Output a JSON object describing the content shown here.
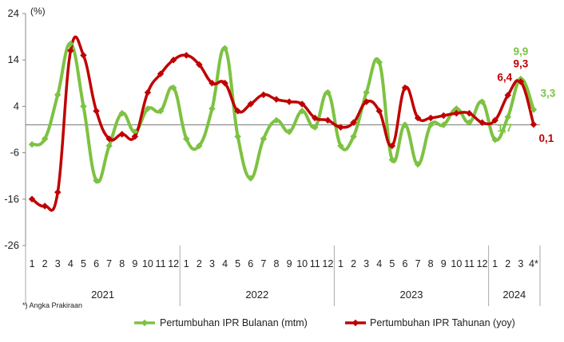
{
  "chart_data": {
    "type": "line",
    "unit_label": "(%)",
    "ylim": [
      -26,
      24
    ],
    "yticks": [
      24,
      14,
      4,
      -6,
      -16,
      -26
    ],
    "months": [
      "1",
      "2",
      "3",
      "4",
      "5",
      "6",
      "7",
      "8",
      "9",
      "10",
      "11",
      "12",
      "1",
      "2",
      "3",
      "4",
      "5",
      "6",
      "7",
      "8",
      "9",
      "10",
      "11",
      "12",
      "1",
      "2",
      "3",
      "4",
      "5",
      "6",
      "7",
      "8",
      "9",
      "10",
      "11",
      "12",
      "1",
      "2",
      "3",
      "4*"
    ],
    "years": [
      {
        "label": "2021",
        "span": [
          0,
          11
        ]
      },
      {
        "label": "2022",
        "span": [
          12,
          23
        ]
      },
      {
        "label": "2023",
        "span": [
          24,
          35
        ]
      },
      {
        "label": "2024",
        "span": [
          36,
          39
        ]
      }
    ],
    "series": [
      {
        "name": "Pertumbuhan IPR Bulanan (mtm)",
        "color": "#7dc242",
        "values": [
          -4.2,
          -3.0,
          6.5,
          17.5,
          4.0,
          -12.0,
          -4.5,
          2.5,
          -1.5,
          3.5,
          3.0,
          8.0,
          -3.0,
          -4.5,
          3.5,
          16.5,
          -2.5,
          -11.5,
          -3.0,
          1.0,
          -1.5,
          3.0,
          -0.5,
          7.0,
          -4.5,
          -2.5,
          7.0,
          13.5,
          -7.5,
          0.0,
          -8.5,
          0.0,
          0.0,
          3.5,
          0.5,
          5.0,
          -3.2,
          1.7,
          9.9,
          3.3
        ]
      },
      {
        "name": "Pertumbuhan IPR Tahunan (yoy)",
        "color": "#c00000",
        "values": [
          -16.0,
          -17.5,
          -14.5,
          16.0,
          15.0,
          3.0,
          -3.0,
          -2.0,
          -2.5,
          7.0,
          11.0,
          14.0,
          15.0,
          13.0,
          9.0,
          9.0,
          3.0,
          4.5,
          6.5,
          5.5,
          5.0,
          4.5,
          1.5,
          1.0,
          -0.5,
          0.5,
          5.0,
          3.0,
          -4.5,
          8.0,
          1.5,
          1.5,
          2.0,
          2.5,
          2.5,
          0.5,
          1.0,
          6.4,
          9.3,
          0.1
        ]
      }
    ],
    "annotations": [
      {
        "text": "9,9",
        "series": 0,
        "index": 38,
        "color": "#7dc242"
      },
      {
        "text": "3,3",
        "series": 0,
        "index": 39,
        "color": "#7dc242"
      },
      {
        "text": "1,7",
        "series": 0,
        "index": 37,
        "color": "#7dc242"
      },
      {
        "text": "9,3",
        "series": 1,
        "index": 38,
        "color": "#c00000"
      },
      {
        "text": "6,4",
        "series": 1,
        "index": 37,
        "color": "#c00000"
      },
      {
        "text": "0,1",
        "series": 1,
        "index": 39,
        "color": "#c00000"
      }
    ],
    "footnote": "*) Angka  Prakiraan",
    "legend_position": "bottom"
  }
}
